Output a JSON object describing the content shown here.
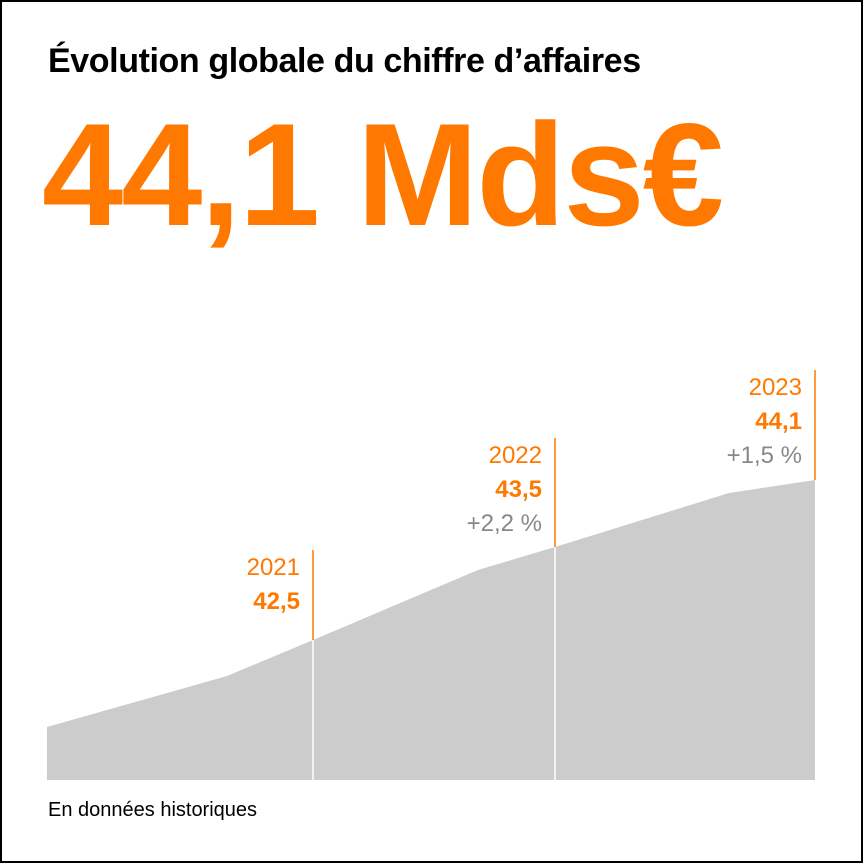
{
  "title": "Évolution globale du chiffre d’affaires",
  "headline_value": "44,1 Mds€",
  "footnote": "En données historiques",
  "colors": {
    "accent": "#ff7900",
    "area": "#cccccc",
    "growth_text": "#888888",
    "text": "#000000"
  },
  "chart_data": {
    "type": "area",
    "x": [
      2021,
      2022,
      2023
    ],
    "values": [
      42.5,
      43.5,
      44.1
    ],
    "value_labels": [
      "42,5",
      "43,5",
      "44,1"
    ],
    "growth_labels": [
      "",
      "+2,2 %",
      "+1,5 %"
    ],
    "grid": false,
    "legend": "none"
  }
}
